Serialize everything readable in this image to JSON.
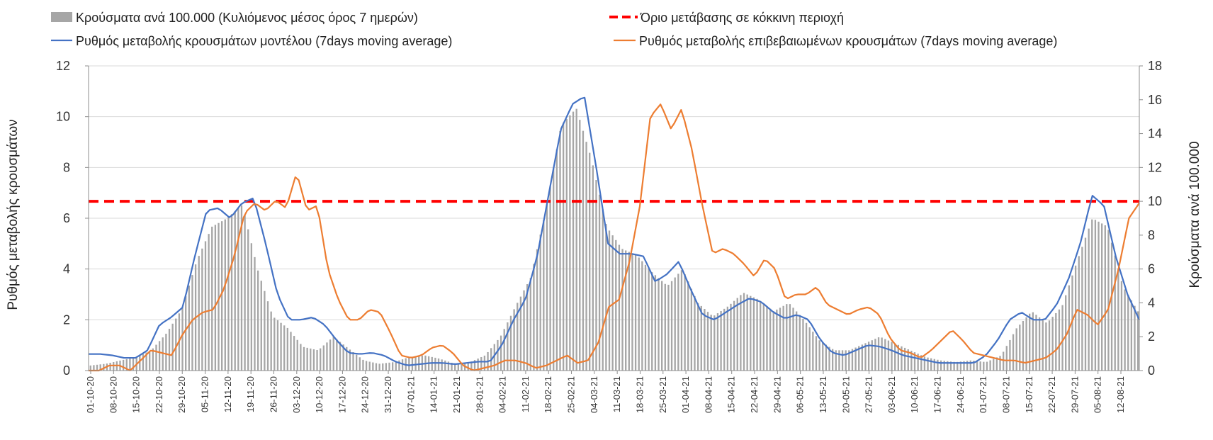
{
  "chart_data": {
    "type": "bar",
    "ylabel_left": "Ρυθμός μεταβολής κρουσμάτων",
    "ylabel_right": "Κρούσματα ανά 100.000",
    "ylim_left": [
      0,
      12
    ],
    "ylim_right": [
      0,
      18
    ],
    "yticks_left": [
      "0",
      "2",
      "4",
      "6",
      "8",
      "10",
      "12"
    ],
    "yticks_right": [
      "0",
      "2",
      "4",
      "6",
      "8",
      "10",
      "12",
      "14",
      "16",
      "18"
    ],
    "grid": true,
    "legend_position": "top",
    "legend": {
      "bars": "Κρούσματα ανά 100.000 (Κυλιόμενος μέσος όρος 7 ημερών)",
      "threshold": "Όριο μετάβασης σε κόκκινη περιοχή",
      "model": "Ρυθμός μεταβολής κρουσμάτων μοντέλου (7days moving average)",
      "confirmed": "Ρυθμός μεταβολής επιβεβαιωμένων κρουσμάτων (7days moving average)"
    },
    "x_tick_labels": [
      "01-10-20",
      "08-10-20",
      "15-10-20",
      "22-10-20",
      "29-10-20",
      "05-11-20",
      "12-11-20",
      "19-11-20",
      "26-11-20",
      "03-12-20",
      "10-12-20",
      "17-12-20",
      "24-12-20",
      "31-12-20",
      "07-01-21",
      "14-01-21",
      "21-01-21",
      "28-01-21",
      "04-02-21",
      "11-02-21",
      "18-02-21",
      "25-02-21",
      "04-03-21",
      "11-03-21",
      "18-03-21",
      "25-03-21",
      "01-04-21",
      "08-04-21",
      "15-04-21",
      "22-04-21",
      "29-04-21",
      "06-05-21",
      "13-05-21",
      "20-05-21",
      "27-05-21",
      "03-06-21",
      "10-06-21",
      "17-06-21",
      "24-06-21",
      "01-07-21",
      "08-07-21",
      "15-07-21",
      "22-07-21",
      "29-07-21",
      "05-08-21",
      "12-08-21"
    ],
    "threshold_right_axis": 10,
    "series": [
      {
        "name": "Κρούσματα ανά 100.000 (Κυλιόμενος μέσος όρος 7 ημερών)",
        "axis": "right",
        "type": "bar",
        "color": "#a6a6a6",
        "weekly_values": [
          0.3,
          0.4,
          0.6,
          0.8,
          1.2,
          2.2,
          3.6,
          6.5,
          8.5,
          9.0,
          9.8,
          6.0,
          3.2,
          2.5,
          1.4,
          1.2,
          2.0,
          1.3,
          0.6,
          0.4,
          0.5,
          0.8,
          0.9,
          0.7,
          0.4,
          0.5,
          0.9,
          2.0,
          3.8,
          5.5,
          9.5,
          14.5,
          15.5,
          12.5,
          8.5,
          7.2,
          6.8,
          5.8,
          5.0,
          6.0,
          4.0,
          3.2,
          3.8,
          4.6,
          4.2,
          3.5,
          4.0,
          3.0,
          1.8,
          1.2,
          1.2,
          1.6,
          2.0,
          1.6,
          1.2,
          0.8,
          0.6,
          0.5,
          0.6,
          0.5,
          0.9,
          2.5,
          3.5,
          2.8,
          3.8,
          6.5,
          9.0,
          8.5,
          5.0,
          3.5
        ]
      },
      {
        "name": "Ρυθμός μεταβολής κρουσμάτων μοντέλου (7days moving average)",
        "axis": "left",
        "type": "line",
        "color": "#4472c4",
        "weekly_values": [
          0.65,
          0.65,
          0.6,
          0.5,
          0.5,
          0.8,
          1.8,
          2.1,
          2.5,
          4.5,
          6.3,
          6.4,
          6.0,
          6.6,
          6.8,
          5.0,
          3.0,
          2.0,
          2.0,
          2.1,
          1.8,
          1.2,
          0.7,
          0.65,
          0.7,
          0.6,
          0.35,
          0.2,
          0.25,
          0.3,
          0.3,
          0.25,
          0.3,
          0.35,
          0.35,
          1.0,
          2.0,
          2.8,
          4.5,
          7.0,
          9.5,
          10.5,
          10.8,
          8.0,
          5.0,
          4.6,
          4.6,
          4.5,
          3.5,
          3.8,
          4.3,
          3.2,
          2.2,
          2.0,
          2.3,
          2.6,
          2.85,
          2.7,
          2.3,
          2.05,
          2.2,
          2.0,
          1.2,
          0.7,
          0.6,
          0.8,
          1.0,
          0.95,
          0.8,
          0.6,
          0.5,
          0.4,
          0.3,
          0.3,
          0.3,
          0.3,
          0.6,
          1.2,
          2.0,
          2.3,
          2.0,
          2.0,
          2.6,
          3.6,
          5.0,
          6.9,
          6.5,
          4.5,
          3.0,
          2.0
        ]
      },
      {
        "name": "Ρυθμός μεταβολής επιβεβαιωμένων κρουσμάτων (7days moving average)",
        "axis": "left",
        "type": "line",
        "color": "#ed7d31",
        "weekly_values": [
          0.0,
          0.0,
          0.2,
          0.2,
          0.0,
          0.4,
          0.8,
          0.7,
          0.6,
          1.4,
          2.0,
          2.3,
          2.4,
          3.2,
          4.5,
          6.2,
          6.6,
          6.3,
          6.7,
          6.4,
          7.8,
          6.3,
          6.5,
          4.0,
          2.8,
          2.0,
          2.0,
          2.4,
          2.3,
          1.5,
          0.6,
          0.5,
          0.6,
          0.9,
          1.0,
          0.7,
          0.2,
          0.0,
          0.1,
          0.2,
          0.4,
          0.4,
          0.3,
          0.1,
          0.2,
          0.4,
          0.6,
          0.3,
          0.4,
          1.1,
          2.5,
          2.8,
          4.3,
          6.5,
          10.0,
          10.5,
          9.5,
          10.3,
          8.7,
          6.5,
          4.6,
          4.8,
          4.6,
          4.2,
          3.7,
          4.4,
          4.0,
          2.8,
          3.0,
          3.0,
          3.3,
          2.6,
          2.4,
          2.2,
          2.4,
          2.5,
          2.2,
          1.3,
          0.8,
          0.7,
          0.5,
          0.8,
          1.2,
          1.6,
          1.2,
          0.7,
          0.6,
          0.5,
          0.4,
          0.4,
          0.3,
          0.4,
          0.5,
          0.8,
          1.4,
          2.4,
          2.2,
          1.8,
          2.4,
          4.0,
          6.0,
          6.6
        ]
      }
    ]
  }
}
